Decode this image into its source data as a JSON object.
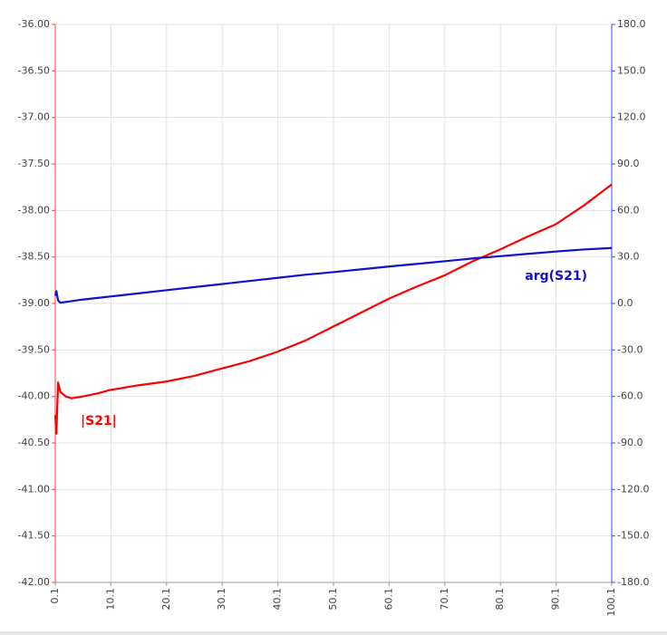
{
  "chart_data": {
    "type": "line",
    "x": [
      0.1,
      0.3,
      0.6,
      1,
      2,
      3,
      5,
      7.5,
      10,
      15,
      20,
      25,
      30,
      35,
      40,
      45,
      50,
      55,
      60,
      65,
      70,
      75,
      80,
      85,
      90,
      95,
      100.1
    ],
    "series": [
      {
        "name": "|S21|",
        "color": "#ff0000",
        "axis": "y",
        "values": [
          -40.2,
          -40.4,
          -39.85,
          -39.95,
          -40.0,
          -40.02,
          -40.0,
          -39.97,
          -39.93,
          -39.88,
          -39.84,
          -39.78,
          -39.7,
          -39.62,
          -39.52,
          -39.4,
          -39.25,
          -39.1,
          -38.95,
          -38.82,
          -38.7,
          -38.55,
          -38.42,
          -38.28,
          -38.15,
          -37.95,
          -37.72
        ]
      },
      {
        "name": "arg(S21)",
        "color": "#1010d0",
        "axis": "y2",
        "values": [
          5,
          8,
          2,
          0.5,
          1,
          1.5,
          2.5,
          3.5,
          4.5,
          6.5,
          8.5,
          10.5,
          12.5,
          14.5,
          16.5,
          18.5,
          20.2,
          22,
          23.8,
          25.5,
          27.2,
          29,
          30.5,
          32,
          33.5,
          34.8,
          35.8
        ]
      }
    ],
    "xlim": [
      0.1,
      100.1
    ],
    "xticks": [
      0.1,
      10.1,
      20.1,
      30.1,
      40.1,
      50.1,
      60.1,
      70.1,
      80.1,
      90.1,
      100.1
    ],
    "ylim": [
      -42,
      -36
    ],
    "yticks": [
      {
        "value": -36,
        "label": "-36.00"
      },
      {
        "value": -36.5,
        "label": "-36.50"
      },
      {
        "value": -37,
        "label": "-37.00"
      },
      {
        "value": -37.5,
        "label": "-37.50"
      },
      {
        "value": -38,
        "label": "-38.00"
      },
      {
        "value": -38.5,
        "label": "-38.50"
      },
      {
        "value": -39,
        "label": "-39.00"
      },
      {
        "value": -39.5,
        "label": "-39.50"
      },
      {
        "value": -40,
        "label": "-40.00"
      },
      {
        "value": -40.5,
        "label": "-40.50"
      },
      {
        "value": -41,
        "label": "-41.00"
      },
      {
        "value": -41.5,
        "label": "-41.50"
      },
      {
        "value": -42,
        "label": "-42.00"
      }
    ],
    "y2lim": [
      -180,
      180
    ],
    "y2ticks": [
      {
        "value": 180,
        "label": "180.0"
      },
      {
        "value": 150,
        "label": "150.0"
      },
      {
        "value": 120,
        "label": "120.0"
      },
      {
        "value": 90,
        "label": "90.0"
      },
      {
        "value": 60,
        "label": "60.0"
      },
      {
        "value": 30,
        "label": "30.0"
      },
      {
        "value": 0,
        "label": "0.0"
      },
      {
        "value": -30,
        "label": "-30.0"
      },
      {
        "value": -60,
        "label": "-60.0"
      },
      {
        "value": -90,
        "label": "-90.0"
      },
      {
        "value": -120,
        "label": "-120.0"
      },
      {
        "value": -150,
        "label": "-150.0"
      },
      {
        "value": -180,
        "label": "-180.0"
      }
    ],
    "grid": true
  }
}
